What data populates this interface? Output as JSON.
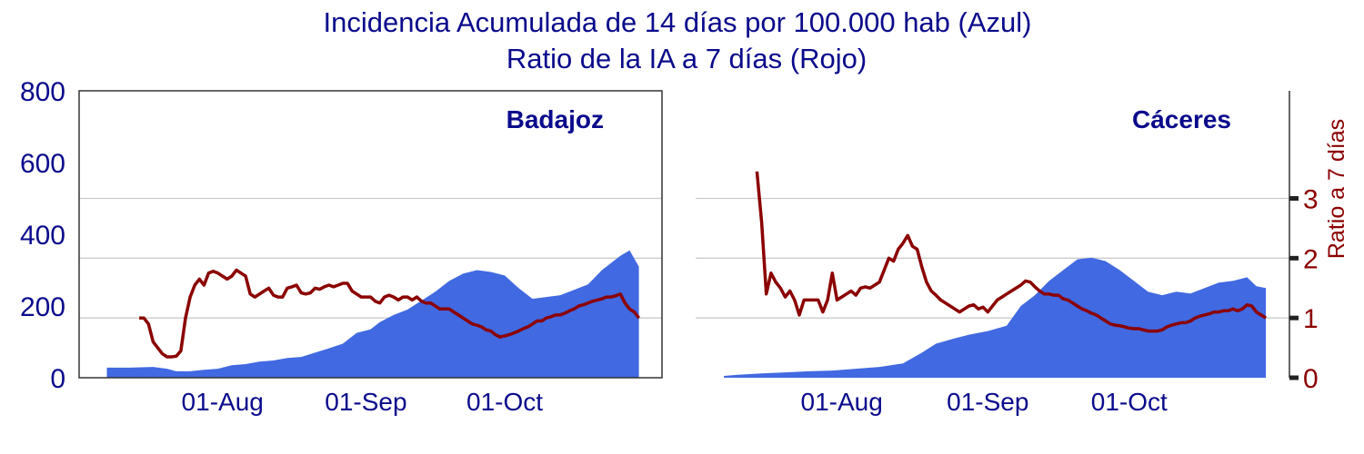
{
  "title_line1": "Incidencia Acumulada de 14 días por 100.000 hab (Azul)",
  "title_line2": "Ratio de la IA a 7 días (Rojo)",
  "colors": {
    "area": "#4169e1",
    "line": "#8b0000",
    "grid": "#cccccc",
    "text": "#0a0a8c"
  },
  "chart_data": [
    {
      "type": "area",
      "panel": "Badajoz",
      "ylim_left": [
        0,
        800
      ],
      "ylim_right": [
        0,
        4.8
      ],
      "yticks_left": [
        0,
        200,
        400,
        600,
        800
      ],
      "xticks": [
        "01-Aug",
        "01-Sep",
        "01-Oct"
      ],
      "xtick_dates": [
        "2020-08-01",
        "2020-09-01",
        "2020-10-01"
      ],
      "grid": "horizontal at right-axis ticks 1, 2, 3",
      "incidencia_14d": {
        "x": [
          "2020-07-07",
          "2020-07-12",
          "2020-07-17",
          "2020-07-20",
          "2020-07-22",
          "2020-07-25",
          "2020-07-28",
          "2020-07-31",
          "2020-08-03",
          "2020-08-06",
          "2020-08-09",
          "2020-08-12",
          "2020-08-15",
          "2020-08-18",
          "2020-08-21",
          "2020-08-24",
          "2020-08-27",
          "2020-08-30",
          "2020-09-02",
          "2020-09-04",
          "2020-09-07",
          "2020-09-10",
          "2020-09-13",
          "2020-09-16",
          "2020-09-19",
          "2020-09-22",
          "2020-09-25",
          "2020-09-28",
          "2020-10-01",
          "2020-10-04",
          "2020-10-07",
          "2020-10-10",
          "2020-10-13",
          "2020-10-16",
          "2020-10-19",
          "2020-10-22",
          "2020-10-24",
          "2020-10-26",
          "2020-10-28",
          "2020-10-30"
        ],
        "y": [
          28,
          28,
          30,
          25,
          18,
          18,
          22,
          25,
          35,
          38,
          45,
          48,
          55,
          58,
          70,
          82,
          95,
          125,
          135,
          155,
          175,
          190,
          215,
          240,
          270,
          290,
          300,
          295,
          285,
          250,
          220,
          225,
          230,
          245,
          260,
          300,
          320,
          340,
          355,
          310
        ]
      },
      "ratio_7d": {
        "x": [
          "2020-07-14",
          "2020-07-15",
          "2020-07-16",
          "2020-07-17",
          "2020-07-18",
          "2020-07-19",
          "2020-07-20",
          "2020-07-21",
          "2020-07-22",
          "2020-07-23",
          "2020-07-24",
          "2020-07-25",
          "2020-07-26",
          "2020-07-27",
          "2020-07-28",
          "2020-07-29",
          "2020-07-30",
          "2020-07-31",
          "2020-08-01",
          "2020-08-02",
          "2020-08-03",
          "2020-08-04",
          "2020-08-05",
          "2020-08-06",
          "2020-08-07",
          "2020-08-08",
          "2020-08-09",
          "2020-08-10",
          "2020-08-11",
          "2020-08-12",
          "2020-08-13",
          "2020-08-14",
          "2020-08-15",
          "2020-08-16",
          "2020-08-17",
          "2020-08-18",
          "2020-08-19",
          "2020-08-20",
          "2020-08-21",
          "2020-08-22",
          "2020-08-23",
          "2020-08-24",
          "2020-08-25",
          "2020-08-26",
          "2020-08-27",
          "2020-08-28",
          "2020-08-29",
          "2020-08-30",
          "2020-08-31",
          "2020-09-01",
          "2020-09-02",
          "2020-09-03",
          "2020-09-04",
          "2020-09-05",
          "2020-09-06",
          "2020-09-07",
          "2020-09-08",
          "2020-09-09",
          "2020-09-10",
          "2020-09-11",
          "2020-09-12",
          "2020-09-13",
          "2020-09-14",
          "2020-09-15",
          "2020-09-16",
          "2020-09-17",
          "2020-09-18",
          "2020-09-19",
          "2020-09-20",
          "2020-09-21",
          "2020-09-22",
          "2020-09-23",
          "2020-09-24",
          "2020-09-25",
          "2020-09-26",
          "2020-09-27",
          "2020-09-28",
          "2020-09-29",
          "2020-09-30",
          "2020-10-01",
          "2020-10-02",
          "2020-10-03",
          "2020-10-04",
          "2020-10-05",
          "2020-10-06",
          "2020-10-07",
          "2020-10-08",
          "2020-10-09",
          "2020-10-10",
          "2020-10-11",
          "2020-10-12",
          "2020-10-13",
          "2020-10-14",
          "2020-10-15",
          "2020-10-16",
          "2020-10-17",
          "2020-10-18",
          "2020-10-19",
          "2020-10-20",
          "2020-10-21",
          "2020-10-22",
          "2020-10-23",
          "2020-10-24",
          "2020-10-25",
          "2020-10-26",
          "2020-10-27",
          "2020-10-28",
          "2020-10-29",
          "2020-10-30"
        ],
        "y": [
          1.0,
          1.0,
          0.9,
          0.6,
          0.5,
          0.4,
          0.35,
          0.35,
          0.36,
          0.45,
          1.0,
          1.35,
          1.55,
          1.65,
          1.55,
          1.75,
          1.78,
          1.75,
          1.7,
          1.65,
          1.7,
          1.8,
          1.75,
          1.7,
          1.4,
          1.35,
          1.4,
          1.45,
          1.5,
          1.38,
          1.35,
          1.35,
          1.5,
          1.52,
          1.55,
          1.42,
          1.4,
          1.42,
          1.5,
          1.48,
          1.52,
          1.55,
          1.52,
          1.55,
          1.58,
          1.58,
          1.45,
          1.4,
          1.35,
          1.35,
          1.35,
          1.28,
          1.25,
          1.35,
          1.38,
          1.35,
          1.3,
          1.35,
          1.35,
          1.3,
          1.35,
          1.28,
          1.25,
          1.25,
          1.2,
          1.15,
          1.15,
          1.15,
          1.1,
          1.05,
          1.0,
          0.95,
          0.9,
          0.88,
          0.85,
          0.8,
          0.78,
          0.72,
          0.68,
          0.7,
          0.72,
          0.75,
          0.78,
          0.82,
          0.85,
          0.9,
          0.95,
          0.95,
          1.0,
          1.02,
          1.05,
          1.05,
          1.08,
          1.12,
          1.15,
          1.2,
          1.22,
          1.25,
          1.28,
          1.3,
          1.32,
          1.35,
          1.35,
          1.37,
          1.4,
          1.25,
          1.15,
          1.1,
          1.0
        ]
      }
    },
    {
      "type": "area",
      "panel": "Cáceres",
      "ylim_left": [
        0,
        800
      ],
      "ylim_right": [
        0,
        4.8
      ],
      "yticks_right": [
        0,
        1,
        2,
        3
      ],
      "ylabel_right": "Ratio a 7 días",
      "xticks": [
        "01-Aug",
        "01-Sep",
        "01-Oct"
      ],
      "xtick_dates": [
        "2020-08-01",
        "2020-09-01",
        "2020-10-01"
      ],
      "grid": "horizontal at right-axis ticks 1, 2, 3",
      "incidencia_14d": {
        "x": [
          "2020-07-07",
          "2020-07-10",
          "2020-07-15",
          "2020-07-20",
          "2020-07-25",
          "2020-07-30",
          "2020-08-04",
          "2020-08-09",
          "2020-08-14",
          "2020-08-18",
          "2020-08-21",
          "2020-08-25",
          "2020-08-28",
          "2020-09-01",
          "2020-09-05",
          "2020-09-08",
          "2020-09-11",
          "2020-09-14",
          "2020-09-17",
          "2020-09-20",
          "2020-09-23",
          "2020-09-26",
          "2020-09-29",
          "2020-10-02",
          "2020-10-05",
          "2020-10-08",
          "2020-10-11",
          "2020-10-14",
          "2020-10-17",
          "2020-10-20",
          "2020-10-23",
          "2020-10-26",
          "2020-10-28",
          "2020-10-30"
        ],
        "y": [
          5,
          8,
          12,
          15,
          18,
          20,
          25,
          30,
          40,
          70,
          95,
          110,
          120,
          130,
          145,
          200,
          230,
          270,
          300,
          330,
          335,
          325,
          300,
          270,
          240,
          230,
          240,
          235,
          250,
          265,
          270,
          280,
          255,
          250
        ]
      },
      "ratio_7d": {
        "x": [
          "2020-07-14",
          "2020-07-15",
          "2020-07-16",
          "2020-07-17",
          "2020-07-18",
          "2020-07-19",
          "2020-07-20",
          "2020-07-21",
          "2020-07-22",
          "2020-07-23",
          "2020-07-24",
          "2020-07-25",
          "2020-07-26",
          "2020-07-27",
          "2020-07-28",
          "2020-07-29",
          "2020-07-30",
          "2020-07-31",
          "2020-08-01",
          "2020-08-02",
          "2020-08-03",
          "2020-08-04",
          "2020-08-05",
          "2020-08-06",
          "2020-08-07",
          "2020-08-08",
          "2020-08-09",
          "2020-08-10",
          "2020-08-11",
          "2020-08-12",
          "2020-08-13",
          "2020-08-14",
          "2020-08-15",
          "2020-08-16",
          "2020-08-17",
          "2020-08-18",
          "2020-08-19",
          "2020-08-20",
          "2020-08-21",
          "2020-08-22",
          "2020-08-23",
          "2020-08-24",
          "2020-08-25",
          "2020-08-26",
          "2020-08-27",
          "2020-08-28",
          "2020-08-29",
          "2020-08-30",
          "2020-08-31",
          "2020-09-01",
          "2020-09-02",
          "2020-09-03",
          "2020-09-04",
          "2020-09-05",
          "2020-09-06",
          "2020-09-07",
          "2020-09-08",
          "2020-09-09",
          "2020-09-10",
          "2020-09-11",
          "2020-09-12",
          "2020-09-13",
          "2020-09-14",
          "2020-09-15",
          "2020-09-16",
          "2020-09-17",
          "2020-09-18",
          "2020-09-19",
          "2020-09-20",
          "2020-09-21",
          "2020-09-22",
          "2020-09-23",
          "2020-09-24",
          "2020-09-25",
          "2020-09-26",
          "2020-09-27",
          "2020-09-28",
          "2020-09-29",
          "2020-09-30",
          "2020-10-01",
          "2020-10-02",
          "2020-10-03",
          "2020-10-04",
          "2020-10-05",
          "2020-10-06",
          "2020-10-07",
          "2020-10-08",
          "2020-10-09",
          "2020-10-10",
          "2020-10-11",
          "2020-10-12",
          "2020-10-13",
          "2020-10-14",
          "2020-10-15",
          "2020-10-16",
          "2020-10-17",
          "2020-10-18",
          "2020-10-19",
          "2020-10-20",
          "2020-10-21",
          "2020-10-22",
          "2020-10-23",
          "2020-10-24",
          "2020-10-25",
          "2020-10-26",
          "2020-10-27",
          "2020-10-28",
          "2020-10-29",
          "2020-10-30"
        ],
        "y": [
          3.45,
          2.6,
          1.4,
          1.75,
          1.6,
          1.5,
          1.35,
          1.45,
          1.3,
          1.05,
          1.3,
          1.3,
          1.3,
          1.3,
          1.1,
          1.3,
          1.75,
          1.3,
          1.35,
          1.4,
          1.45,
          1.38,
          1.5,
          1.52,
          1.5,
          1.55,
          1.6,
          1.8,
          2.0,
          1.95,
          2.15,
          2.25,
          2.38,
          2.2,
          2.15,
          1.85,
          1.6,
          1.45,
          1.38,
          1.3,
          1.25,
          1.2,
          1.15,
          1.1,
          1.15,
          1.2,
          1.22,
          1.15,
          1.18,
          1.1,
          1.2,
          1.3,
          1.35,
          1.4,
          1.45,
          1.5,
          1.55,
          1.62,
          1.6,
          1.52,
          1.45,
          1.4,
          1.4,
          1.38,
          1.38,
          1.32,
          1.3,
          1.25,
          1.2,
          1.15,
          1.12,
          1.08,
          1.05,
          1.0,
          0.95,
          0.9,
          0.88,
          0.87,
          0.85,
          0.83,
          0.82,
          0.82,
          0.8,
          0.78,
          0.78,
          0.78,
          0.8,
          0.85,
          0.88,
          0.9,
          0.92,
          0.92,
          0.95,
          1.0,
          1.03,
          1.05,
          1.07,
          1.1,
          1.1,
          1.12,
          1.12,
          1.15,
          1.12,
          1.15,
          1.22,
          1.2,
          1.1,
          1.05,
          1.0
        ]
      }
    }
  ]
}
